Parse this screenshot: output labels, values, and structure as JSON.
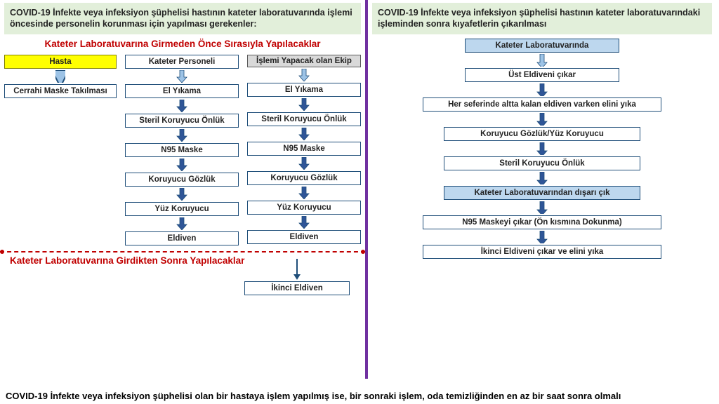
{
  "left": {
    "header": "COVID-19 İnfekte veya infeksiyon şüphelisi hastının kateter laboratuvarında işlemi öncesinde  personelin korunması  için yapılması gerekenler:",
    "title1": "Kateter Laboratuvarına Girmeden Önce Sırasıyla Yapılacaklar",
    "col1": {
      "head": "Hasta",
      "items": [
        "Cerrahi Maske Takılması"
      ]
    },
    "col2": {
      "head": "Kateter Personeli",
      "items": [
        "El Yıkama",
        "Steril Koruyucu Önlük",
        "N95 Maske",
        "Koruyucu Gözlük",
        "Yüz Koruyucu",
        "Eldiven"
      ]
    },
    "col3": {
      "head": "İşlemi Yapacak olan Ekip",
      "items": [
        "El Yıkama",
        "Steril Koruyucu Önlük",
        "N95 Maske",
        "Koruyucu Gözlük",
        "Yüz Koruyucu",
        "Eldiven"
      ]
    },
    "title2": "Kateter Laboratuvarına Girdikten Sonra Yapılacaklar",
    "after": "İkinci Eldiven"
  },
  "right": {
    "header": "COVID-19 İnfekte veya infeksiyon şüphelisi hastının kateter laboratuvarındaki işleminden sonra kıyafetlerin çıkarılması",
    "steps": [
      {
        "text": "Kateter Laboratuvarında",
        "style": "lightblue",
        "w": "narrow"
      },
      {
        "text": "Üst Eldiveni çıkar",
        "style": "plain",
        "w": "narrow"
      },
      {
        "text": "Her seferinde altta kalan eldiven varken elini yıka",
        "style": "plain",
        "w": "wide"
      },
      {
        "text": "Koruyucu Gözlük/Yüz Koruyucu",
        "style": "plain",
        "w": "med"
      },
      {
        "text": "Steril Koruyucu Önlük",
        "style": "plain",
        "w": "med"
      },
      {
        "text": "Kateter Laboratuvarından dışarı çık",
        "style": "lightblue",
        "w": "med"
      },
      {
        "text": "N95 Maskeyi çıkar (Ön kısmına Dokunma)",
        "style": "plain",
        "w": "wide"
      },
      {
        "text": "İkinci Eldiveni çıkar ve elini yıka",
        "style": "plain",
        "w": "wide"
      }
    ]
  },
  "footer": "COVID-19 İnfekte veya infeksiyon şüphelisi olan bir hastaya işlem yapılmış ise, bir sonraki işlem, oda temizliğinden en az  bir saat sonra olmalı",
  "colors": {
    "arrow_fill": "#2f5597",
    "arrow_light": "#9dc3e6",
    "arrow_stroke": "#1f4e79"
  }
}
